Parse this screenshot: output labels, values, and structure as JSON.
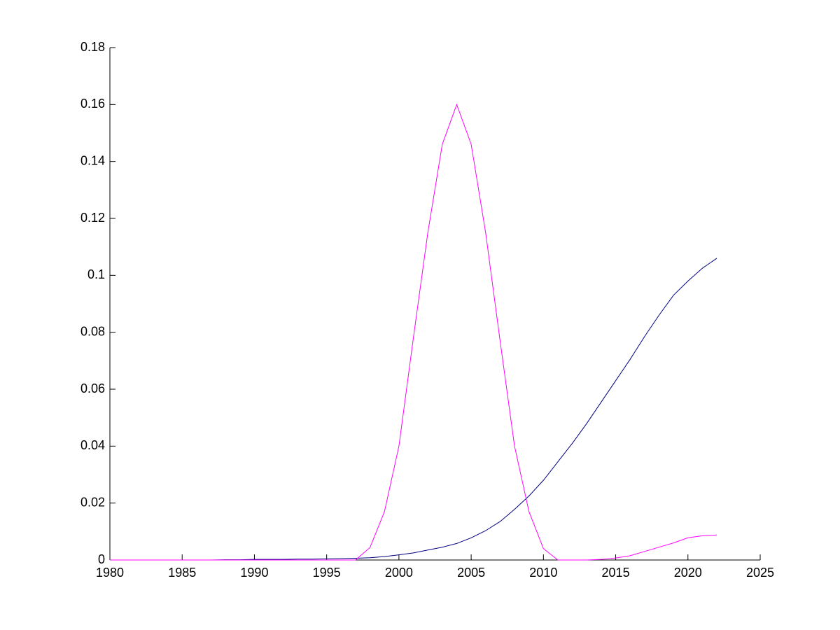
{
  "chart_data": {
    "type": "line",
    "x": [
      1980,
      1981,
      1982,
      1983,
      1984,
      1985,
      1986,
      1987,
      1988,
      1989,
      1990,
      1991,
      1992,
      1993,
      1994,
      1995,
      1996,
      1997,
      1998,
      1999,
      2000,
      2001,
      2002,
      2003,
      2004,
      2005,
      2006,
      2007,
      2008,
      2009,
      2010,
      2011,
      2012,
      2013,
      2014,
      2015,
      2016,
      2017,
      2018,
      2019,
      2020,
      2021,
      2022
    ],
    "series": [
      {
        "color": "#000080",
        "values": [
          0,
          0,
          0,
          0,
          0,
          0,
          0,
          0,
          0.0001,
          0.0001,
          0.0002,
          0.0002,
          0.0002,
          0.0003,
          0.0003,
          0.0004,
          0.0005,
          0.0006,
          0.0008,
          0.0012,
          0.0018,
          0.0025,
          0.0035,
          0.0045,
          0.0058,
          0.0078,
          0.0103,
          0.0135,
          0.0178,
          0.0225,
          0.028,
          0.0345,
          0.041,
          0.048,
          0.0555,
          0.063,
          0.0705,
          0.0785,
          0.086,
          0.093,
          0.098,
          0.1025,
          0.106
        ]
      },
      {
        "color": "#ff00ff",
        "values": [
          0,
          0,
          0,
          0,
          0,
          0,
          0,
          0,
          0,
          0,
          0,
          0,
          0,
          0,
          0,
          0,
          0,
          0,
          0.0044,
          0.017,
          0.04,
          0.078,
          0.115,
          0.146,
          0.16,
          0.146,
          0.115,
          0.077,
          0.04,
          0.017,
          0.004,
          0,
          0,
          0,
          0.0002,
          0.0007,
          0.0015,
          0.003,
          0.0045,
          0.006,
          0.0078,
          0.0085,
          0.0088
        ]
      }
    ],
    "xlim": [
      1980,
      2025
    ],
    "xticks": [
      1980,
      1985,
      1990,
      1995,
      2000,
      2005,
      2010,
      2015,
      2020,
      2025
    ],
    "ylim": [
      0,
      0.18
    ],
    "yticks": [
      0,
      0.02,
      0.04,
      0.06,
      0.08,
      0.1,
      0.12,
      0.14,
      0.16,
      0.18
    ]
  }
}
